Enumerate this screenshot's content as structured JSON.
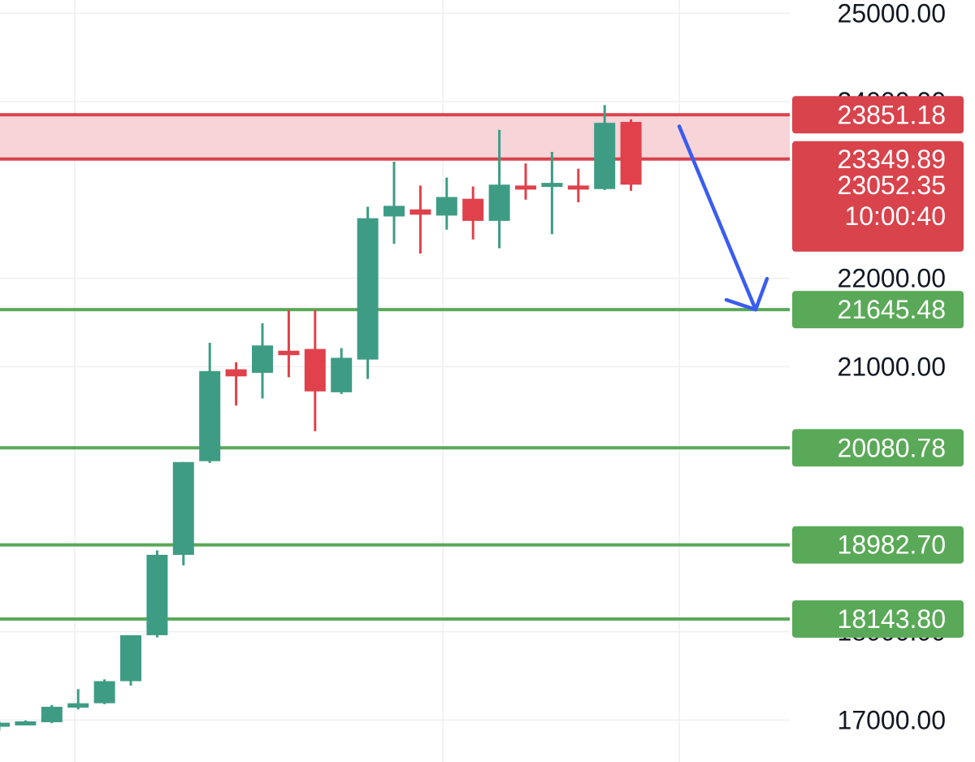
{
  "chart_data": {
    "type": "candlestick",
    "title": "",
    "xlabel": "",
    "ylabel": "",
    "ylim": [
      16525,
      25150
    ],
    "y_ticks": [
      "25000.00",
      "24000.00",
      "22000.00",
      "21000.00",
      "18000.00",
      "17000.00"
    ],
    "grid": true,
    "colors": {
      "up": "#3e9c85",
      "down": "#e0414b",
      "support": "#5aa958",
      "resistance": "#d9434c",
      "zone_fill": "#f6d4d8",
      "arrow": "#3a5cf0",
      "grid": "#eeeff2"
    },
    "candles": [
      {
        "o": 16945,
        "h": 16985,
        "l": 16880,
        "c": 16970
      },
      {
        "o": 16975,
        "h": 16995,
        "l": 16955,
        "c": 16985
      },
      {
        "o": 16975,
        "h": 17170,
        "l": 16965,
        "c": 17150
      },
      {
        "o": 17140,
        "h": 17350,
        "l": 17120,
        "c": 17190
      },
      {
        "o": 17190,
        "h": 17460,
        "l": 17180,
        "c": 17440
      },
      {
        "o": 17440,
        "h": 17960,
        "l": 17390,
        "c": 17960
      },
      {
        "o": 17960,
        "h": 18920,
        "l": 17935,
        "c": 18870
      },
      {
        "o": 18870,
        "h": 19920,
        "l": 18750,
        "c": 19920
      },
      {
        "o": 19930,
        "h": 21270,
        "l": 19910,
        "c": 20950
      },
      {
        "o": 20970,
        "h": 21050,
        "l": 20560,
        "c": 20890
      },
      {
        "o": 20930,
        "h": 21490,
        "l": 20640,
        "c": 21240
      },
      {
        "o": 21180,
        "h": 21640,
        "l": 20880,
        "c": 21130
      },
      {
        "o": 21200,
        "h": 21640,
        "l": 20270,
        "c": 20720
      },
      {
        "o": 20710,
        "h": 21210,
        "l": 20690,
        "c": 21100
      },
      {
        "o": 21080,
        "h": 22810,
        "l": 20860,
        "c": 22680
      },
      {
        "o": 22700,
        "h": 23320,
        "l": 22390,
        "c": 22820
      },
      {
        "o": 22780,
        "h": 23050,
        "l": 22280,
        "c": 22720
      },
      {
        "o": 22710,
        "h": 23140,
        "l": 22550,
        "c": 22920
      },
      {
        "o": 22900,
        "h": 23040,
        "l": 22440,
        "c": 22650
      },
      {
        "o": 22650,
        "h": 23680,
        "l": 22340,
        "c": 23060
      },
      {
        "o": 23050,
        "h": 23300,
        "l": 22890,
        "c": 23010
      },
      {
        "o": 23040,
        "h": 23430,
        "l": 22500,
        "c": 23080
      },
      {
        "o": 23050,
        "h": 23240,
        "l": 22860,
        "c": 23020
      },
      {
        "o": 23010,
        "h": 23960,
        "l": 23000,
        "c": 23760
      },
      {
        "o": 23770,
        "h": 23800,
        "l": 22990,
        "c": 23060
      }
    ],
    "resistance_levels": [
      {
        "value": 23851.18,
        "label": "23851.18"
      },
      {
        "value": 23349.89,
        "label": "23349.89"
      }
    ],
    "support_levels": [
      {
        "value": 21645.48,
        "label": "21645.48"
      },
      {
        "value": 20080.78,
        "label": "20080.78"
      },
      {
        "value": 18982.7,
        "label": "18982.70"
      },
      {
        "value": 18143.8,
        "label": "18143.80"
      }
    ],
    "last_price": {
      "value": 23052.35,
      "label": "23052.35",
      "countdown": "10:00:40"
    },
    "arrow": {
      "from": 23720,
      "to": 21645.48,
      "direction": "down"
    }
  }
}
